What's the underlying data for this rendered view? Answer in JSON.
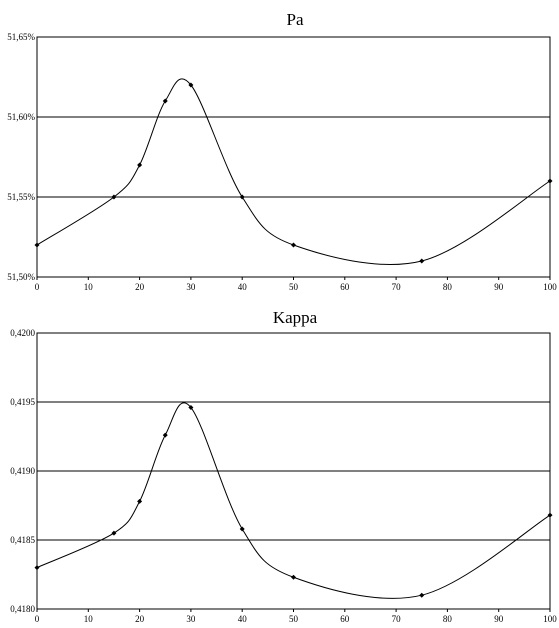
{
  "chart_data": [
    {
      "type": "line",
      "title": "Pa",
      "x": [
        0,
        15,
        20,
        25,
        30,
        40,
        50,
        75,
        100
      ],
      "series": [
        {
          "values": [
            51.52,
            51.55,
            51.57,
            51.61,
            51.62,
            51.55,
            51.52,
            51.51,
            51.56
          ]
        }
      ],
      "xlim": [
        0,
        100
      ],
      "ylim": [
        51.5,
        51.65
      ],
      "xticks": [
        "0",
        "10",
        "20",
        "30",
        "40",
        "50",
        "60",
        "70",
        "80",
        "90",
        "100"
      ],
      "yticks": [
        "51,50%",
        "51,55%",
        "51,60%",
        "51,65%"
      ],
      "ytick_values": [
        51.5,
        51.55,
        51.6,
        51.65
      ],
      "smooth": true,
      "grid": "horizontal",
      "legend": "none"
    },
    {
      "type": "line",
      "title": "Kappa",
      "x": [
        0,
        15,
        20,
        25,
        30,
        40,
        50,
        75,
        100
      ],
      "series": [
        {
          "values": [
            0.4183,
            0.41855,
            0.41878,
            0.41926,
            0.41946,
            0.41858,
            0.41823,
            0.4181,
            0.41868
          ]
        }
      ],
      "xlim": [
        0,
        100
      ],
      "ylim": [
        0.418,
        0.42
      ],
      "xticks": [
        "0",
        "10",
        "20",
        "30",
        "40",
        "50",
        "60",
        "70",
        "80",
        "90",
        "100"
      ],
      "yticks": [
        "0,4180",
        "0,4185",
        "0,4190",
        "0,4195",
        "0,4200"
      ],
      "ytick_values": [
        0.418,
        0.4185,
        0.419,
        0.4195,
        0.42
      ],
      "smooth": true,
      "grid": "horizontal",
      "legend": "none"
    }
  ],
  "colors": {
    "line": "#000000",
    "grid": "#000000",
    "background": "#ffffff"
  }
}
